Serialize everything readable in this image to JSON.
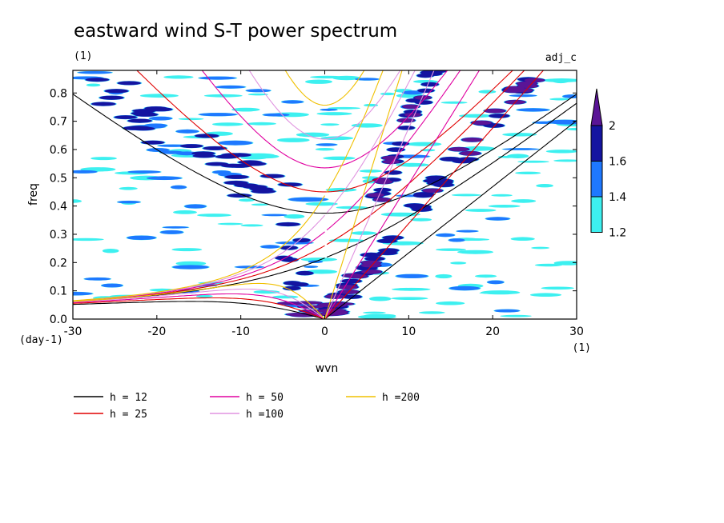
{
  "chart_data": {
    "type": "heatmap",
    "title": "eastward wind S-T power spectrum",
    "subtitle_left": "(1)",
    "subtitle_right": "adj_c",
    "xlabel": "wvn",
    "ylabel": "freq",
    "x_unit": "(1)",
    "y_unit": "(day-1)",
    "xlim": [
      -30,
      30
    ],
    "ylim": [
      0,
      0.88
    ],
    "x_ticks": [
      -30,
      -20,
      -10,
      0,
      10,
      20,
      30
    ],
    "x_tick_labels": [
      "-30",
      "-20",
      "-10",
      "0",
      "10",
      "20",
      "30"
    ],
    "y_ticks": [
      0,
      0.1,
      0.2,
      0.3,
      0.4,
      0.5,
      0.6,
      0.7,
      0.8
    ],
    "y_tick_labels": [
      "0.0",
      "0.1",
      "0.2",
      "0.3",
      "0.4",
      "0.5",
      "0.6",
      "0.7",
      "0.8"
    ],
    "contour_levels": [
      1.2,
      1.4,
      1.6,
      2
    ],
    "colorbar_labels": [
      "1.2",
      "1.4",
      "1.6",
      "2"
    ],
    "fill_colors": [
      "#3df0f0",
      "#1e78ff",
      "#1414a0",
      "#5a1496"
    ],
    "dispersion_curves": [
      {
        "label": "h = 12",
        "h": 12,
        "color": "#000000"
      },
      {
        "label": "h = 25",
        "h": 25,
        "color": "#e00000"
      },
      {
        "label": "h = 50",
        "h": 50,
        "color": "#e000a0"
      },
      {
        "label": "h =100",
        "h": 100,
        "color": "#e094e0"
      },
      {
        "label": "h =200",
        "h": 200,
        "color": "#f0c000"
      }
    ],
    "legend_placement": "bottom-left"
  }
}
